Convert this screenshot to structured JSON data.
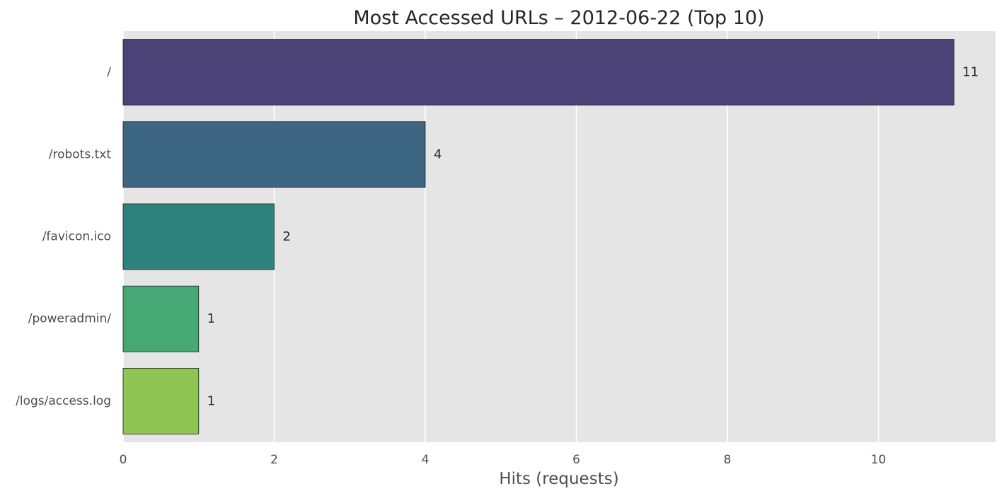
{
  "chart_data": {
    "type": "bar",
    "orientation": "horizontal",
    "title": "Most Accessed URLs – 2012-06-22 (Top 10)",
    "xlabel": "Hits (requests)",
    "ylabel": "",
    "categories": [
      "/",
      "/robots.txt",
      "/favicon.ico",
      "/poweradmin/",
      "/logs/access.log"
    ],
    "values": [
      11,
      4,
      2,
      1,
      1
    ],
    "data_labels": [
      "11",
      "4",
      "2",
      "1",
      "1"
    ],
    "xlim": [
      0,
      11.55
    ],
    "xticks": [
      0,
      2,
      4,
      6,
      8,
      10
    ],
    "xtick_labels": [
      "0",
      "2",
      "4",
      "6",
      "8",
      "10"
    ],
    "grid": true,
    "grid_axis": "x",
    "colors": {
      "plot_background": "#e5e5e5",
      "grid": "#ffffff",
      "bar_edge": "#1a1a1a",
      "bars": [
        "#4b4277",
        "#3d6682",
        "#2e827d",
        "#46a975",
        "#8fc555"
      ]
    }
  }
}
